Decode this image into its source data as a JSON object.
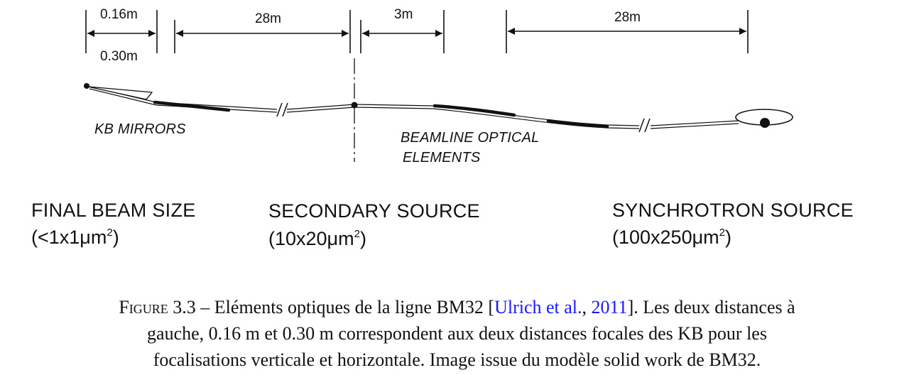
{
  "diagram": {
    "dimensions": {
      "d1": "0.16m",
      "d2": "0.30m",
      "d3": "28m",
      "d4": "3m",
      "d5": "28m"
    },
    "labels": {
      "kb_mirrors": "KB MIRRORS",
      "optical_1": "BEAMLINE OPTICAL",
      "optical_2": "ELEMENTS"
    },
    "sources": {
      "final_title": "FINAL BEAM SIZE",
      "final_size": "(<1x1μm",
      "secondary_title": "SECONDARY SOURCE",
      "secondary_size": "(10x20μm",
      "synchrotron_title": "SYNCHROTRON SOURCE",
      "synchrotron_size": "(100x250μm",
      "sup": "2",
      "close": ")"
    }
  },
  "caption": {
    "label": "Figure 3.3",
    "dash": " – ",
    "text1": "Eléments optiques de la ligne BM32 [",
    "ref_authors": "Ulrich et al.",
    "ref_sep": ", ",
    "ref_year": "2011",
    "text2": "]. Les deux distances à",
    "line2": "gauche, 0.16 m et 0.30 m correspondent aux deux distances focales des KB pour les",
    "line3": "focalisations verticale et horizontale. Image issue du modèle solid work de BM32."
  }
}
